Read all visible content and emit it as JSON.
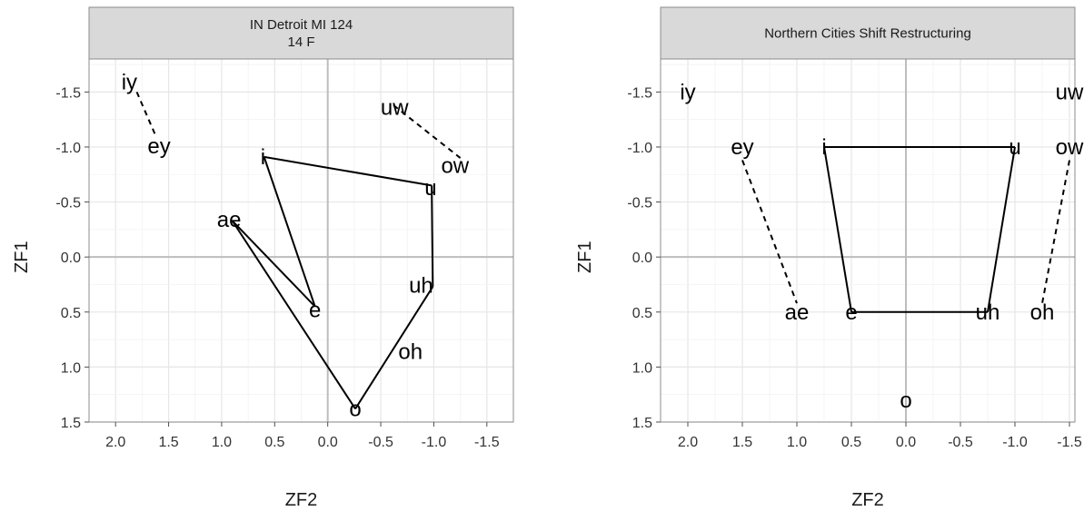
{
  "chart_data": [
    {
      "type": "scatter",
      "title": "IN   Detroit MI 124\n14 F",
      "title_lines": [
        "IN   Detroit MI 124",
        "14 F"
      ],
      "xlabel": "ZF2",
      "ylabel": "ZF1",
      "x_reversed": true,
      "y_reversed": true,
      "xlim": [
        2.25,
        -1.75
      ],
      "ylim": [
        -1.8,
        1.5
      ],
      "xticks": [
        2.0,
        1.5,
        1.0,
        0.5,
        0.0,
        -0.5,
        -1.0,
        -1.5
      ],
      "xtick_labels": [
        "2.0",
        "1.5",
        "1.0",
        "0.5",
        "0.0",
        "-0.5",
        "-1.0",
        "-1.5"
      ],
      "yticks": [
        -1.5,
        -1.0,
        -0.5,
        0.0,
        0.5,
        1.0,
        1.5
      ],
      "ytick_labels": [
        "-1.5",
        "-1.0",
        "-0.5",
        "0.0",
        "0.5",
        "1.0",
        "1.5"
      ],
      "grid": true,
      "zero_lines": true,
      "points": [
        {
          "label": "iy",
          "x": 1.87,
          "y": -1.59
        },
        {
          "label": "ey",
          "x": 1.59,
          "y": -1.01
        },
        {
          "label": "i",
          "x": 0.61,
          "y": -0.91
        },
        {
          "label": "uw",
          "x": -0.63,
          "y": -1.36
        },
        {
          "label": "ow",
          "x": -1.2,
          "y": -0.83
        },
        {
          "label": "u",
          "x": -0.97,
          "y": -0.63
        },
        {
          "label": "ae",
          "x": 0.93,
          "y": -0.34
        },
        {
          "label": "uh",
          "x": -0.88,
          "y": 0.26
        },
        {
          "label": "e",
          "x": 0.12,
          "y": 0.48
        },
        {
          "label": "oh",
          "x": -0.78,
          "y": 0.86
        },
        {
          "label": "o",
          "x": -0.26,
          "y": 1.38
        }
      ],
      "segments": [
        {
          "from": [
            1.8,
            -1.5
          ],
          "to": [
            1.63,
            -1.12
          ],
          "style": "dashed"
        },
        {
          "from": [
            -0.62,
            -1.38
          ],
          "to": [
            -1.25,
            -0.9
          ],
          "style": "dashed"
        },
        {
          "from": [
            0.6,
            -0.91
          ],
          "to": [
            -0.98,
            -0.65
          ],
          "style": "solid"
        },
        {
          "from": [
            0.6,
            -0.91
          ],
          "to": [
            0.12,
            0.45
          ],
          "style": "solid"
        },
        {
          "from": [
            0.9,
            -0.33
          ],
          "to": [
            0.12,
            0.45
          ],
          "style": "solid"
        },
        {
          "from": [
            0.9,
            -0.33
          ],
          "to": [
            -0.26,
            1.38
          ],
          "style": "solid"
        },
        {
          "from": [
            -0.98,
            -0.65
          ],
          "to": [
            -0.99,
            0.27
          ],
          "style": "solid"
        },
        {
          "from": [
            -0.99,
            0.27
          ],
          "to": [
            -0.26,
            1.38
          ],
          "style": "solid"
        }
      ]
    },
    {
      "type": "scatter",
      "title": "Northern Cities Shift Restructuring",
      "title_lines": [
        "Northern Cities Shift Restructuring"
      ],
      "xlabel": "ZF2",
      "ylabel": "ZF1",
      "x_reversed": true,
      "y_reversed": true,
      "xlim": [
        2.25,
        -1.55
      ],
      "ylim": [
        -1.8,
        1.5
      ],
      "xticks": [
        2.0,
        1.5,
        1.0,
        0.5,
        0.0,
        -0.5,
        -1.0,
        -1.5
      ],
      "xtick_labels": [
        "2.0",
        "1.5",
        "1.0",
        "0.5",
        "0.0",
        "-0.5",
        "-1.0",
        "-1.5"
      ],
      "yticks": [
        -1.5,
        -1.0,
        -0.5,
        0.0,
        0.5,
        1.0,
        1.5
      ],
      "ytick_labels": [
        "-1.5",
        "-1.0",
        "-0.5",
        "0.0",
        "0.5",
        "1.0",
        "1.5"
      ],
      "grid": true,
      "zero_lines": true,
      "points": [
        {
          "label": "iy",
          "x": 2.0,
          "y": -1.5
        },
        {
          "label": "uw",
          "x": -1.5,
          "y": -1.5
        },
        {
          "label": "ey",
          "x": 1.5,
          "y": -1.0
        },
        {
          "label": "i",
          "x": 0.75,
          "y": -1.0
        },
        {
          "label": "u",
          "x": -1.0,
          "y": -1.0
        },
        {
          "label": "ow",
          "x": -1.5,
          "y": -1.0
        },
        {
          "label": "ae",
          "x": 1.0,
          "y": 0.5
        },
        {
          "label": "e",
          "x": 0.5,
          "y": 0.5
        },
        {
          "label": "uh",
          "x": -0.75,
          "y": 0.5
        },
        {
          "label": "oh",
          "x": -1.25,
          "y": 0.5
        },
        {
          "label": "o",
          "x": 0.0,
          "y": 1.3
        }
      ],
      "segments": [
        {
          "from": [
            1.5,
            -0.88
          ],
          "to": [
            1.0,
            0.42
          ],
          "style": "dashed"
        },
        {
          "from": [
            -1.5,
            -0.88
          ],
          "to": [
            -1.25,
            0.42
          ],
          "style": "dashed"
        },
        {
          "from": [
            0.75,
            -1.0
          ],
          "to": [
            -1.0,
            -1.0
          ],
          "style": "solid"
        },
        {
          "from": [
            0.75,
            -1.0
          ],
          "to": [
            0.5,
            0.5
          ],
          "style": "solid"
        },
        {
          "from": [
            -1.0,
            -1.0
          ],
          "to": [
            -0.75,
            0.5
          ],
          "style": "solid"
        },
        {
          "from": [
            0.5,
            0.5
          ],
          "to": [
            -0.75,
            0.5
          ],
          "style": "solid"
        }
      ]
    }
  ]
}
